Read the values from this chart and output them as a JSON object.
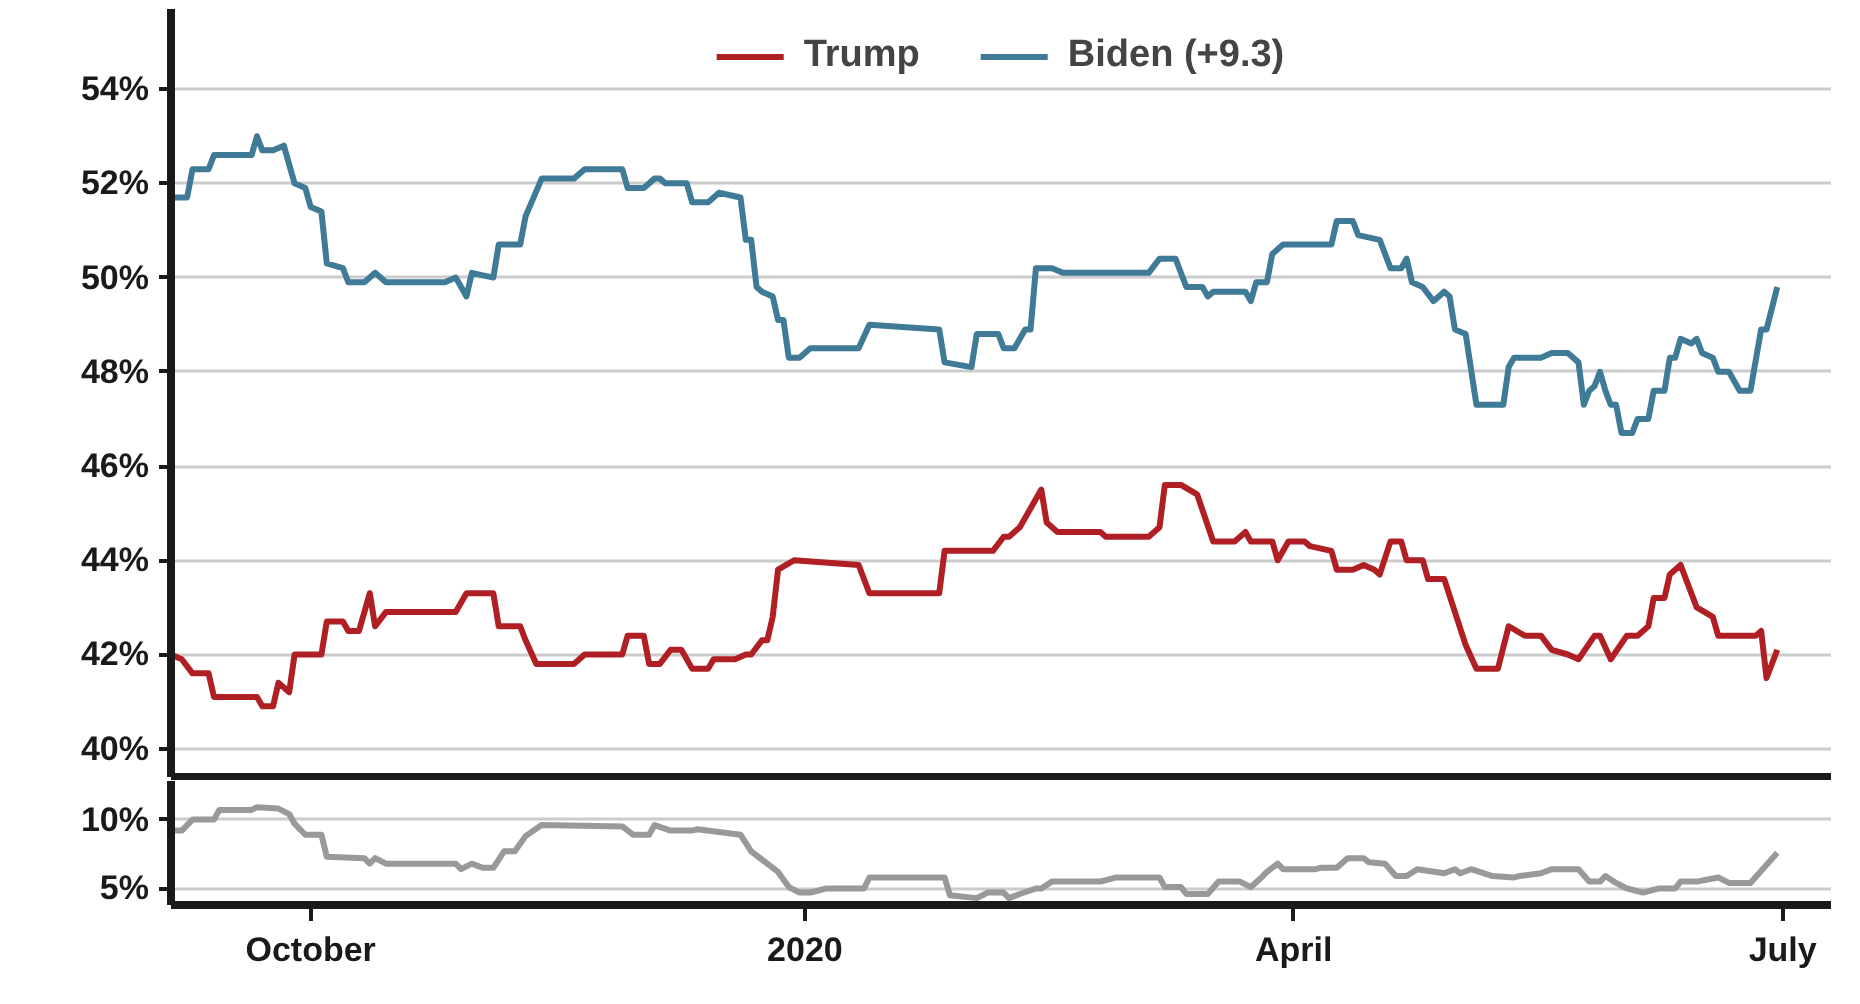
{
  "chart_data": [
    {
      "type": "line",
      "xlim": [
        "2019-09-05",
        "2020-07-10"
      ],
      "ylim": [
        39.4,
        55.7
      ],
      "yticks": [
        {
          "value": 40,
          "label": "40%"
        },
        {
          "value": 42,
          "label": "42%"
        },
        {
          "value": 44,
          "label": "44%"
        },
        {
          "value": 46,
          "label": "46%"
        },
        {
          "value": 48,
          "label": "48%"
        },
        {
          "value": 50,
          "label": "50%"
        },
        {
          "value": 52,
          "label": "52%"
        },
        {
          "value": 54,
          "label": "54%"
        }
      ],
      "grid": "y",
      "legend": "top",
      "tick_labels": "y",
      "line_style": "solid",
      "marker": "none",
      "series": [
        {
          "name": "Trump",
          "color": "#b01f24",
          "x": [
            "2019-09-05",
            "2019-09-07",
            "2019-09-09",
            "2019-09-12",
            "2019-09-13",
            "2019-09-21",
            "2019-09-22",
            "2019-09-24",
            "2019-09-25",
            "2019-09-27",
            "2019-09-28",
            "2019-10-03",
            "2019-10-04",
            "2019-10-07",
            "2019-10-08",
            "2019-10-10",
            "2019-10-12",
            "2019-10-13",
            "2019-10-15",
            "2019-10-28",
            "2019-10-30",
            "2019-11-04",
            "2019-11-05",
            "2019-11-09",
            "2019-11-10",
            "2019-11-12",
            "2019-11-19",
            "2019-11-21",
            "2019-11-28",
            "2019-11-29",
            "2019-12-02",
            "2019-12-03",
            "2019-12-05",
            "2019-12-07",
            "2019-12-09",
            "2019-12-11",
            "2019-12-14",
            "2019-12-15",
            "2019-12-19",
            "2019-12-21",
            "2019-12-22",
            "2019-12-24",
            "2019-12-25",
            "2019-12-26",
            "2019-12-27",
            "2019-12-30",
            "2020-01-11",
            "2020-01-13",
            "2020-01-26",
            "2020-01-27",
            "2020-02-05",
            "2020-02-07",
            "2020-02-08",
            "2020-02-10",
            "2020-02-14",
            "2020-02-15",
            "2020-02-17",
            "2020-02-25",
            "2020-02-26",
            "2020-03-05",
            "2020-03-07",
            "2020-03-08",
            "2020-03-11",
            "2020-03-14",
            "2020-03-17",
            "2020-03-21",
            "2020-03-23",
            "2020-03-24",
            "2020-03-28",
            "2020-03-29",
            "2020-03-31",
            "2020-04-03",
            "2020-04-04",
            "2020-04-08",
            "2020-04-09",
            "2020-04-12",
            "2020-04-14",
            "2020-04-16",
            "2020-04-17",
            "2020-04-19",
            "2020-04-21",
            "2020-04-22",
            "2020-04-25",
            "2020-04-26",
            "2020-04-29",
            "2020-05-03",
            "2020-05-05",
            "2020-05-09",
            "2020-05-11",
            "2020-05-14",
            "2020-05-17",
            "2020-05-19",
            "2020-05-22",
            "2020-05-24",
            "2020-05-27",
            "2020-05-28",
            "2020-05-30",
            "2020-06-02",
            "2020-06-04",
            "2020-06-06",
            "2020-06-07",
            "2020-06-09",
            "2020-06-10",
            "2020-06-12",
            "2020-06-15",
            "2020-06-18",
            "2020-06-19",
            "2020-06-26",
            "2020-06-27",
            "2020-06-28",
            "2020-06-30"
          ],
          "values": [
            42.0,
            41.9,
            41.6,
            41.6,
            41.1,
            41.1,
            40.9,
            40.9,
            41.4,
            41.2,
            42.0,
            42.0,
            42.7,
            42.7,
            42.5,
            42.5,
            43.3,
            42.6,
            42.9,
            42.9,
            43.3,
            43.3,
            42.6,
            42.6,
            42.3,
            41.8,
            41.8,
            42.0,
            42.0,
            42.4,
            42.4,
            41.8,
            41.8,
            42.1,
            42.1,
            41.7,
            41.7,
            41.9,
            41.9,
            42.0,
            42.0,
            42.3,
            42.3,
            42.8,
            43.8,
            44.0,
            43.9,
            43.3,
            43.3,
            44.2,
            44.2,
            44.5,
            44.5,
            44.7,
            45.5,
            44.8,
            44.6,
            44.6,
            44.5,
            44.5,
            44.7,
            45.6,
            45.6,
            45.4,
            44.4,
            44.4,
            44.6,
            44.4,
            44.4,
            44.0,
            44.4,
            44.4,
            44.3,
            44.2,
            43.8,
            43.8,
            43.9,
            43.8,
            43.7,
            44.4,
            44.4,
            44.0,
            44.0,
            43.6,
            43.6,
            42.2,
            41.7,
            41.7,
            42.6,
            42.4,
            42.4,
            42.1,
            42.0,
            41.9,
            42.4,
            42.4,
            41.9,
            42.4,
            42.4,
            42.6,
            43.2,
            43.2,
            43.7,
            43.9,
            43.0,
            42.8,
            42.4,
            42.4,
            42.5,
            41.5,
            42.1
          ]
        },
        {
          "name": "Biden (+9.3)",
          "color": "#3f7a96",
          "x": [
            "2019-09-05",
            "2019-09-08",
            "2019-09-09",
            "2019-09-12",
            "2019-09-13",
            "2019-09-20",
            "2019-09-21",
            "2019-09-22",
            "2019-09-24",
            "2019-09-26",
            "2019-09-28",
            "2019-09-30",
            "2019-10-01",
            "2019-10-03",
            "2019-10-04",
            "2019-10-07",
            "2019-10-08",
            "2019-10-11",
            "2019-10-13",
            "2019-10-15",
            "2019-10-26",
            "2019-10-28",
            "2019-10-30",
            "2019-10-31",
            "2019-11-04",
            "2019-11-05",
            "2019-11-09",
            "2019-11-10",
            "2019-11-13",
            "2019-11-19",
            "2019-11-21",
            "2019-11-28",
            "2019-11-29",
            "2019-12-02",
            "2019-12-04",
            "2019-12-05",
            "2019-12-06",
            "2019-12-10",
            "2019-12-11",
            "2019-12-14",
            "2019-12-16",
            "2019-12-20",
            "2019-12-21",
            "2019-12-22",
            "2019-12-23",
            "2019-12-24",
            "2019-12-26",
            "2019-12-27",
            "2019-12-28",
            "2019-12-29",
            "2019-12-31",
            "2020-01-02",
            "2020-01-11",
            "2020-01-13",
            "2020-01-26",
            "2020-01-27",
            "2020-02-01",
            "2020-02-02",
            "2020-02-06",
            "2020-02-07",
            "2020-02-09",
            "2020-02-11",
            "2020-02-12",
            "2020-02-13",
            "2020-02-16",
            "2020-02-18",
            "2020-03-05",
            "2020-03-07",
            "2020-03-10",
            "2020-03-12",
            "2020-03-15",
            "2020-03-16",
            "2020-03-17",
            "2020-03-23",
            "2020-03-24",
            "2020-03-25",
            "2020-03-27",
            "2020-03-28",
            "2020-03-30",
            "2020-04-08",
            "2020-04-09",
            "2020-04-12",
            "2020-04-13",
            "2020-04-17",
            "2020-04-19",
            "2020-04-21",
            "2020-04-22",
            "2020-04-23",
            "2020-04-25",
            "2020-04-27",
            "2020-04-29",
            "2020-04-30",
            "2020-05-01",
            "2020-05-03",
            "2020-05-05",
            "2020-05-10",
            "2020-05-11",
            "2020-05-12",
            "2020-05-17",
            "2020-05-19",
            "2020-05-22",
            "2020-05-24",
            "2020-05-25",
            "2020-05-26",
            "2020-05-27",
            "2020-05-28",
            "2020-05-29",
            "2020-05-30",
            "2020-05-31",
            "2020-06-01",
            "2020-06-03",
            "2020-06-04",
            "2020-06-06",
            "2020-06-07",
            "2020-06-09",
            "2020-06-10",
            "2020-06-11",
            "2020-06-12",
            "2020-06-14",
            "2020-06-15",
            "2020-06-16",
            "2020-06-18",
            "2020-06-19",
            "2020-06-21",
            "2020-06-23",
            "2020-06-25",
            "2020-06-27",
            "2020-06-28",
            "2020-06-30"
          ],
          "values": [
            51.7,
            51.7,
            52.3,
            52.3,
            52.6,
            52.6,
            53.0,
            52.7,
            52.7,
            52.8,
            52.0,
            51.9,
            51.5,
            51.4,
            50.3,
            50.2,
            49.9,
            49.9,
            50.1,
            49.9,
            49.9,
            50.0,
            49.6,
            50.1,
            50.0,
            50.7,
            50.7,
            51.3,
            52.1,
            52.1,
            52.3,
            52.3,
            51.9,
            51.9,
            52.1,
            52.1,
            52.0,
            52.0,
            51.6,
            51.6,
            51.8,
            51.7,
            50.8,
            50.8,
            49.8,
            49.7,
            49.6,
            49.1,
            49.1,
            48.3,
            48.3,
            48.5,
            48.5,
            49.0,
            48.9,
            48.2,
            48.1,
            48.8,
            48.8,
            48.5,
            48.5,
            48.9,
            48.9,
            50.2,
            50.2,
            50.1,
            50.1,
            50.4,
            50.4,
            49.8,
            49.8,
            49.6,
            49.7,
            49.7,
            49.5,
            49.9,
            49.9,
            50.5,
            50.7,
            50.7,
            51.2,
            51.2,
            50.9,
            50.8,
            50.2,
            50.2,
            50.4,
            49.9,
            49.8,
            49.5,
            49.7,
            49.6,
            48.9,
            48.8,
            47.3,
            47.3,
            48.1,
            48.3,
            48.3,
            48.4,
            48.4,
            48.2,
            47.3,
            47.6,
            47.7,
            48.0,
            47.6,
            47.3,
            47.3,
            46.7,
            46.7,
            47.0,
            47.0,
            47.6,
            47.6,
            48.3,
            48.3,
            48.7,
            48.6,
            48.7,
            48.4,
            48.3,
            48.0,
            48.0,
            47.6,
            47.6,
            48.9,
            48.9,
            49.8
          ]
        }
      ]
    },
    {
      "type": "line",
      "xlim": [
        "2019-09-05",
        "2020-07-10"
      ],
      "ylim": [
        3.8,
        12.8
      ],
      "yticks": [
        {
          "value": 5,
          "label": "5%"
        },
        {
          "value": 10,
          "label": "10%"
        }
      ],
      "xticks": [
        {
          "value": "2019-10-01",
          "label": "October"
        },
        {
          "value": "2020-01-01",
          "label": "2020"
        },
        {
          "value": "2020-04-01",
          "label": "April"
        },
        {
          "value": "2020-07-01",
          "label": "July"
        }
      ],
      "grid": "y",
      "line_style": "solid",
      "marker": "none",
      "series": [
        {
          "color": "#999999",
          "x": [
            "2019-09-05",
            "2019-09-07",
            "2019-09-09",
            "2019-09-13",
            "2019-09-14",
            "2019-09-20",
            "2019-09-21",
            "2019-09-25",
            "2019-09-27",
            "2019-09-28",
            "2019-09-30",
            "2019-10-03",
            "2019-10-04",
            "2019-10-11",
            "2019-10-12",
            "2019-10-13",
            "2019-10-15",
            "2019-10-28",
            "2019-10-29",
            "2019-10-31",
            "2019-11-02",
            "2019-11-04",
            "2019-11-06",
            "2019-11-08",
            "2019-11-10",
            "2019-11-13",
            "2019-11-28",
            "2019-11-30",
            "2019-12-03",
            "2019-12-04",
            "2019-12-07",
            "2019-12-11",
            "2019-12-12",
            "2019-12-20",
            "2019-12-22",
            "2019-12-25",
            "2019-12-27",
            "2019-12-29",
            "2019-12-31",
            "2020-01-02",
            "2020-01-05",
            "2020-01-12",
            "2020-01-13",
            "2020-01-27",
            "2020-01-28",
            "2020-02-02",
            "2020-02-04",
            "2020-02-07",
            "2020-02-08",
            "2020-02-10",
            "2020-02-13",
            "2020-02-14",
            "2020-02-16",
            "2020-02-25",
            "2020-02-28",
            "2020-03-07",
            "2020-03-08",
            "2020-03-11",
            "2020-03-12",
            "2020-03-16",
            "2020-03-18",
            "2020-03-22",
            "2020-03-24",
            "2020-03-26",
            "2020-03-27",
            "2020-03-29",
            "2020-03-30",
            "2020-04-05",
            "2020-04-06",
            "2020-04-09",
            "2020-04-11",
            "2020-04-14",
            "2020-04-15",
            "2020-04-18",
            "2020-04-20",
            "2020-04-22",
            "2020-04-24",
            "2020-04-29",
            "2020-05-01",
            "2020-05-02",
            "2020-05-04",
            "2020-05-08",
            "2020-05-12",
            "2020-05-13",
            "2020-05-17",
            "2020-05-19",
            "2020-05-24",
            "2020-05-26",
            "2020-05-28",
            "2020-05-29",
            "2020-05-31",
            "2020-06-02",
            "2020-06-05",
            "2020-06-08",
            "2020-06-11",
            "2020-06-12",
            "2020-06-15",
            "2020-06-19",
            "2020-06-21",
            "2020-06-25",
            "2020-06-30"
          ],
          "values": [
            9.2,
            9.2,
            10.0,
            10.0,
            10.7,
            10.7,
            10.9,
            10.8,
            10.4,
            9.7,
            8.9,
            8.9,
            7.3,
            7.2,
            6.8,
            7.2,
            6.8,
            6.8,
            6.4,
            6.8,
            6.5,
            6.5,
            7.7,
            7.7,
            8.8,
            9.6,
            9.5,
            8.9,
            8.9,
            9.6,
            9.2,
            9.2,
            9.3,
            8.9,
            7.7,
            6.8,
            6.2,
            5.1,
            4.7,
            4.7,
            5.0,
            5.0,
            5.8,
            5.8,
            4.5,
            4.3,
            4.7,
            4.7,
            4.3,
            4.6,
            5.0,
            5.0,
            5.5,
            5.5,
            5.8,
            5.8,
            5.1,
            5.1,
            4.6,
            4.6,
            5.5,
            5.5,
            5.1,
            5.8,
            6.2,
            6.8,
            6.4,
            6.4,
            6.5,
            6.5,
            7.2,
            7.2,
            6.9,
            6.8,
            5.9,
            5.9,
            6.4,
            6.1,
            6.4,
            6.1,
            6.4,
            5.9,
            5.8,
            5.9,
            6.1,
            6.4,
            6.4,
            5.5,
            5.5,
            5.9,
            5.4,
            5.0,
            4.7,
            5.0,
            5.0,
            5.5,
            5.5,
            5.8,
            5.4,
            5.4,
            7.6
          ]
        }
      ]
    }
  ]
}
